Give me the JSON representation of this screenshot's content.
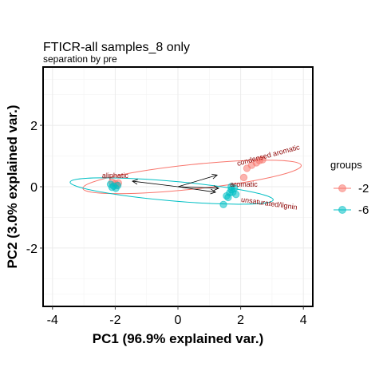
{
  "chart_data": {
    "type": "scatter",
    "title": "FTICR-all samples_8 only",
    "subtitle": "separation by pre",
    "xlabel": "PC1 (96.9% explained var.)",
    "ylabel": "PC2 (3.0% explained var.)",
    "xlim": [
      -4.3,
      4.3
    ],
    "ylim": [
      -3.9,
      3.9
    ],
    "x_ticks": [
      -4,
      -2,
      0,
      2,
      4
    ],
    "y_ticks": [
      -2,
      0,
      2
    ],
    "x_tick_labels": [
      "-4",
      "-2",
      "0",
      "2",
      "4"
    ],
    "y_tick_labels": [
      "-2",
      "0",
      "2"
    ],
    "grid": true,
    "legend": {
      "title": "groups",
      "position": "right"
    },
    "series": [
      {
        "name": "-2",
        "color": "#F8766D",
        "points": [
          [
            -2.1,
            0.15
          ],
          [
            -2.0,
            0.1
          ],
          [
            -1.95,
            0.05
          ],
          [
            -1.9,
            0.12
          ],
          [
            2.2,
            0.6
          ],
          [
            2.35,
            0.7
          ],
          [
            2.5,
            0.78
          ],
          [
            2.6,
            0.85
          ],
          [
            2.7,
            0.88
          ],
          [
            2.1,
            0.3
          ]
        ],
        "ellipse": {
          "cx": 0.45,
          "cy": 0.32,
          "rx": 3.5,
          "ry": 0.4,
          "angle_deg": 6
        }
      },
      {
        "name": "-6",
        "color": "#00BFC4",
        "points": [
          [
            -2.15,
            0.08
          ],
          [
            -2.05,
            0.02
          ],
          [
            -1.98,
            -0.05
          ],
          [
            -1.92,
            0.04
          ],
          [
            -2.1,
            -0.02
          ],
          [
            1.55,
            -0.3
          ],
          [
            1.65,
            -0.2
          ],
          [
            1.7,
            -0.1
          ],
          [
            1.75,
            -0.18
          ],
          [
            1.85,
            -0.25
          ],
          [
            1.7,
            0.0
          ],
          [
            1.45,
            -0.58
          ],
          [
            1.8,
            -0.05
          ],
          [
            1.6,
            -0.35
          ]
        ],
        "ellipse": {
          "cx": -0.2,
          "cy": -0.14,
          "rx": 3.25,
          "ry": 0.32,
          "angle_deg": -5
        }
      }
    ],
    "vectors": [
      {
        "label": "aliphatic",
        "x": -1.45,
        "y": 0.18
      },
      {
        "label": "condensed aromatic",
        "x": 1.25,
        "y": 0.38
      },
      {
        "label": "aromatic",
        "x": 1.3,
        "y": -0.05
      },
      {
        "label": "unsaturated/lignin",
        "x": 1.2,
        "y": -0.18
      }
    ],
    "vector_labels": [
      {
        "text": "aliphatic",
        "x": -2.0,
        "y": 0.28,
        "rotate": 0
      },
      {
        "text": "condensed aromatic",
        "x": 2.9,
        "y": 0.95,
        "rotate": -15
      },
      {
        "text": "aromatic",
        "x": 2.1,
        "y": 0.0,
        "rotate": 0
      },
      {
        "text": "unsaturated/lignin",
        "x": 2.9,
        "y": -0.62,
        "rotate": 8
      }
    ]
  }
}
